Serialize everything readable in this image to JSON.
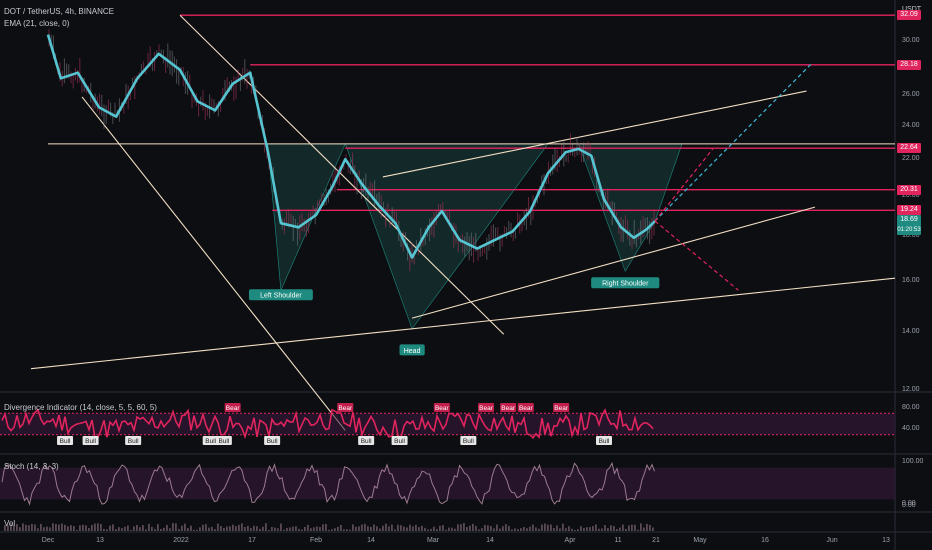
{
  "header": {
    "symbol_line": "DOT / TetherUS, 4h, BINANCE",
    "ema_line": "EMA (21, close, 0)",
    "currency": "USDT"
  },
  "colors": {
    "background": "#0d0e12",
    "level_line": "#e0245e",
    "trend_line": "#f2dfc4",
    "ema": "#56c5d2",
    "pattern_fill": "#1f5a56",
    "osc_pink": "#e0245e",
    "osc_zone": "#3a1a3e",
    "projection_blue": "#3db8d6",
    "projection_pink": "#e0245e",
    "label_green": "#1e8a80",
    "label_red": "#c21f4d"
  },
  "chart_data": [
    {
      "type": "line",
      "title": "DOT / TetherUS, 4h, BINANCE",
      "series_name": "EMA (21, close, 0)",
      "ylabel": "USDT",
      "ylim": [
        10.5,
        33
      ],
      "y_scale": "log",
      "y_ticks": [
        "32.00",
        "30.00",
        "28.00",
        "26.00",
        "24.00",
        "22.00",
        "20.00",
        "18.00",
        "16.00",
        "14.00",
        "12.00"
      ],
      "x_ticks": [
        "Dec",
        "13",
        "2022",
        "17",
        "Feb",
        "14",
        "Mar",
        "14",
        "Apr",
        "11",
        "21",
        "May",
        "16",
        "Jun",
        "13"
      ],
      "price_levels": [
        {
          "label": "32.09",
          "value": 32.09
        },
        {
          "label": "28.18",
          "value": 28.18
        },
        {
          "label": "22.64",
          "value": 22.64
        },
        {
          "label": "20.31",
          "value": 20.31
        },
        {
          "label": "19.24",
          "value": 19.24
        }
      ],
      "current_price": {
        "label": "18.69",
        "countdown": "01:20:53",
        "value": 18.69
      },
      "ema_path": [
        {
          "t": "Dec 1",
          "v": 30.5
        },
        {
          "t": "Dec 4",
          "v": 27.2
        },
        {
          "t": "Dec 8",
          "v": 27.6
        },
        {
          "t": "Dec 13",
          "v": 25.2
        },
        {
          "t": "Dec 17",
          "v": 24.6
        },
        {
          "t": "Dec 22",
          "v": 27.2
        },
        {
          "t": "Dec 27",
          "v": 29.0
        },
        {
          "t": "Jan 1",
          "v": 27.8
        },
        {
          "t": "Jan 5",
          "v": 25.6
        },
        {
          "t": "Jan 9",
          "v": 25.0
        },
        {
          "t": "Jan 13",
          "v": 26.8
        },
        {
          "t": "Jan 17",
          "v": 27.6
        },
        {
          "t": "Jan 21",
          "v": 22.5
        },
        {
          "t": "Jan 24",
          "v": 18.6
        },
        {
          "t": "Jan 28",
          "v": 18.4
        },
        {
          "t": "Feb 1",
          "v": 19.0
        },
        {
          "t": "Feb 5",
          "v": 20.5
        },
        {
          "t": "Feb 8",
          "v": 22.0
        },
        {
          "t": "Feb 12",
          "v": 20.6
        },
        {
          "t": "Feb 16",
          "v": 19.5
        },
        {
          "t": "Feb 20",
          "v": 18.6
        },
        {
          "t": "Feb 24",
          "v": 17.0
        },
        {
          "t": "Feb 28",
          "v": 18.4
        },
        {
          "t": "Mar 3",
          "v": 19.2
        },
        {
          "t": "Mar 7",
          "v": 17.8
        },
        {
          "t": "Mar 11",
          "v": 17.4
        },
        {
          "t": "Mar 15",
          "v": 17.8
        },
        {
          "t": "Mar 19",
          "v": 18.2
        },
        {
          "t": "Mar 23",
          "v": 19.2
        },
        {
          "t": "Mar 27",
          "v": 21.2
        },
        {
          "t": "Mar 31",
          "v": 22.4
        },
        {
          "t": "Apr 3",
          "v": 22.6
        },
        {
          "t": "Apr 6",
          "v": 22.2
        },
        {
          "t": "Apr 9",
          "v": 19.8
        },
        {
          "t": "Apr 13",
          "v": 18.4
        },
        {
          "t": "Apr 16",
          "v": 17.9
        },
        {
          "t": "Apr 19",
          "v": 18.3
        },
        {
          "t": "Apr 21",
          "v": 18.7
        }
      ],
      "pattern_labels": [
        {
          "text": "Left Shoulder",
          "t": "Jan 24",
          "v": 15.6
        },
        {
          "text": "Head",
          "t": "Feb 24",
          "v": 13.5
        },
        {
          "text": "Right Shoulder",
          "t": "Apr 14",
          "v": 16.1
        }
      ],
      "trend_lines": [
        {
          "from": {
            "t": "Jan 1",
            "v": 32.09
          },
          "to": {
            "t": "Mar 17",
            "v": 13.9
          }
        },
        {
          "from": {
            "t": "Dec 9",
            "v": 25.9
          },
          "to": {
            "t": "Feb 8",
            "v": 10.8
          }
        },
        {
          "from": {
            "t": "Nov 27",
            "v": 12.7
          },
          "to": {
            "t": "Jun 15",
            "v": 16.1
          }
        },
        {
          "from": {
            "t": "Dec 1",
            "v": 22.9
          },
          "to": {
            "t": "Jun 15",
            "v": 22.9
          }
        },
        {
          "from": {
            "t": "Feb 17",
            "v": 21.0
          },
          "to": {
            "t": "May 26",
            "v": 26.3
          }
        },
        {
          "from": {
            "t": "Feb 24",
            "v": 14.5
          },
          "to": {
            "t": "May 28",
            "v": 19.4
          }
        }
      ],
      "projections": [
        {
          "color": "blue",
          "points": [
            {
              "t": "Apr 21",
              "v": 18.7
            },
            {
              "t": "May 27",
              "v": 28.2
            }
          ]
        },
        {
          "color": "pink",
          "points": [
            {
              "t": "Apr 21",
              "v": 18.7
            },
            {
              "t": "May 4",
              "v": 22.6
            }
          ]
        },
        {
          "color": "pink",
          "points": [
            {
              "t": "Apr 21",
              "v": 18.7
            },
            {
              "t": "May 10",
              "v": 15.6
            }
          ]
        }
      ]
    },
    {
      "type": "line",
      "title": "Divergence Indicator (14, close, 5, 5, 60, 5)",
      "ylim": [
        0,
        100
      ],
      "y_ticks": [
        "80.00",
        "40.00"
      ],
      "bands": [
        70,
        30
      ],
      "signals": [
        {
          "text": "Bull",
          "t": "Dec 5"
        },
        {
          "text": "Bull",
          "t": "Dec 11"
        },
        {
          "text": "Bull",
          "t": "Dec 21"
        },
        {
          "text": "Bull",
          "t": "Jan 8"
        },
        {
          "text": "Bull",
          "t": "Jan 11"
        },
        {
          "text": "Bear",
          "t": "Jan 13"
        },
        {
          "text": "Bull",
          "t": "Jan 22"
        },
        {
          "text": "Bear",
          "t": "Feb 8"
        },
        {
          "text": "Bull",
          "t": "Feb 13"
        },
        {
          "text": "Bull",
          "t": "Feb 21"
        },
        {
          "text": "Bear",
          "t": "Mar 3"
        },
        {
          "text": "Bull",
          "t": "Mar 9"
        },
        {
          "text": "Bear",
          "t": "Mar 13"
        },
        {
          "text": "Bear",
          "t": "Mar 18"
        },
        {
          "text": "Bear",
          "t": "Mar 22"
        },
        {
          "text": "Bear",
          "t": "Mar 30"
        },
        {
          "text": "Bull",
          "t": "Apr 9"
        }
      ]
    },
    {
      "type": "line",
      "title": "Stoch (14, 3, 3)",
      "ylim": [
        0,
        100
      ],
      "y_ticks": [
        "100.00",
        "0.00"
      ],
      "bands": [
        80,
        20
      ]
    },
    {
      "type": "bar",
      "title": "Vol",
      "y_ticks": [
        "0.00"
      ]
    }
  ]
}
